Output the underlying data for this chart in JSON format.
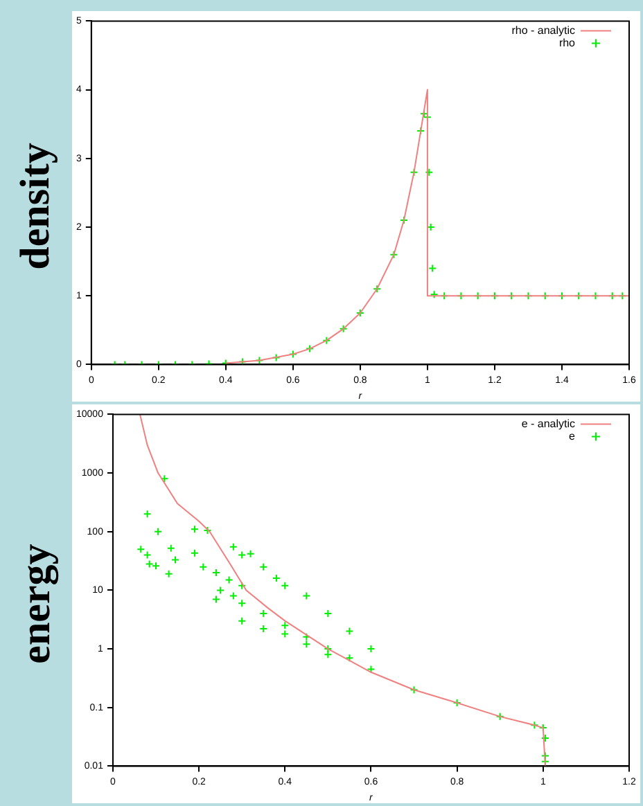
{
  "chart_data": [
    {
      "type": "line",
      "ylabel": "density",
      "xlabel": "r",
      "xlim": [
        0,
        1.6
      ],
      "xticks": [
        0,
        0.2,
        0.4,
        0.6,
        0.8,
        1,
        1.2,
        1.4,
        1.6
      ],
      "ylim": [
        0,
        5
      ],
      "yticks": [
        0,
        1,
        2,
        3,
        4,
        5
      ],
      "grid": false,
      "legend": "top right",
      "series": [
        {
          "name": "rho - analytic",
          "type": "line",
          "color": "#f08080",
          "x": [
            0.4,
            0.5,
            0.6,
            0.65,
            0.7,
            0.75,
            0.8,
            0.85,
            0.9,
            0.93,
            0.96,
            0.98,
            0.99,
            1.0,
            1.0,
            1.6
          ],
          "values": [
            0.02,
            0.06,
            0.15,
            0.23,
            0.35,
            0.52,
            0.75,
            1.1,
            1.6,
            2.1,
            2.8,
            3.4,
            3.7,
            4.0,
            1.0,
            1.0
          ]
        },
        {
          "name": "rho",
          "type": "scatter",
          "marker": "cross",
          "color": "#00ee00",
          "x": [
            0.07,
            0.1,
            0.15,
            0.2,
            0.25,
            0.3,
            0.35,
            0.4,
            0.45,
            0.5,
            0.55,
            0.6,
            0.65,
            0.7,
            0.75,
            0.8,
            0.85,
            0.9,
            0.93,
            0.96,
            0.98,
            0.99,
            1.0,
            1.005,
            1.01,
            1.015,
            1.02,
            1.05,
            1.1,
            1.15,
            1.2,
            1.25,
            1.3,
            1.35,
            1.4,
            1.45,
            1.5,
            1.55,
            1.58
          ],
          "values": [
            0,
            0,
            0,
            0,
            0,
            0,
            0.01,
            0.02,
            0.04,
            0.06,
            0.1,
            0.15,
            0.23,
            0.35,
            0.52,
            0.75,
            1.1,
            1.6,
            2.1,
            2.8,
            3.4,
            3.65,
            3.6,
            2.8,
            2.0,
            1.4,
            1.02,
            1,
            1,
            1,
            1,
            1,
            1,
            1,
            1,
            1,
            1,
            1,
            1
          ]
        }
      ]
    },
    {
      "type": "line",
      "ylabel": "energy",
      "xlabel": "r",
      "log": "y",
      "xlim": [
        0,
        1.2
      ],
      "xticks": [
        0,
        0.2,
        0.4,
        0.6,
        0.8,
        1,
        1.2
      ],
      "ylim": [
        0.01,
        10000
      ],
      "yticks": [
        0.01,
        0.1,
        1,
        10,
        100,
        1000,
        10000
      ],
      "grid": false,
      "legend": "top right",
      "series": [
        {
          "name": "e - analytic",
          "type": "line",
          "color": "#f08080",
          "x": [
            0.063,
            0.08,
            0.105,
            0.15,
            0.2,
            0.225,
            0.27,
            0.31,
            0.36,
            0.4,
            0.5,
            0.6,
            0.7,
            0.8,
            0.9,
            0.98,
            1.0,
            1.005
          ],
          "values": [
            10000,
            3000,
            1000,
            300,
            150,
            100,
            30,
            10,
            5,
            3,
            1,
            0.4,
            0.2,
            0.12,
            0.07,
            0.05,
            0.045,
            0.01
          ]
        },
        {
          "name": "e",
          "type": "scatter",
          "marker": "cross",
          "color": "#00ee00",
          "x": [
            0.12,
            0.08,
            0.105,
            0.065,
            0.08,
            0.085,
            0.1,
            0.135,
            0.145,
            0.13,
            0.19,
            0.22,
            0.19,
            0.21,
            0.24,
            0.28,
            0.3,
            0.32,
            0.35,
            0.38,
            0.4,
            0.45,
            0.5,
            0.55,
            0.6,
            0.27,
            0.3,
            0.25,
            0.28,
            0.3,
            0.35,
            0.4,
            0.45,
            0.5,
            0.55,
            0.6,
            0.7,
            0.8,
            0.9,
            0.98,
            1.0,
            1.005,
            1.005,
            1.005,
            0.24,
            0.3,
            0.35,
            0.4,
            0.45,
            0.5
          ],
          "values": [
            800,
            200,
            100,
            50,
            40,
            28,
            26,
            52,
            33,
            19,
            110,
            105,
            43,
            25,
            20,
            55,
            40,
            42,
            25,
            16,
            12,
            8,
            4,
            2,
            1,
            15,
            12,
            10,
            8,
            6,
            4,
            2.5,
            1.6,
            1,
            0.7,
            0.45,
            0.2,
            0.12,
            0.07,
            0.05,
            0.045,
            0.03,
            0.015,
            0.012,
            7,
            3,
            2.2,
            1.8,
            1.2,
            0.8
          ]
        }
      ]
    }
  ]
}
